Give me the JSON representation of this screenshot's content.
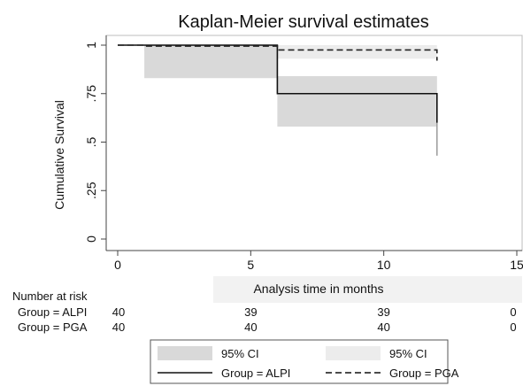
{
  "chart_data": {
    "type": "line",
    "subtype": "kaplan-meier step curve",
    "title": "Kaplan-Meier survival estimates",
    "xlabel": "Analysis time in months",
    "ylabel": "Cumulative Survival",
    "xlim": [
      0,
      15
    ],
    "ylim": [
      0,
      1
    ],
    "xticks": [
      0,
      5,
      10,
      15
    ],
    "xtick_labels": [
      "0",
      "5",
      "10",
      "15"
    ],
    "yticks": [
      0,
      0.25,
      0.5,
      0.75,
      1
    ],
    "ytick_labels": [
      "0",
      ".25",
      ".5",
      ".75",
      "1"
    ],
    "grid": false,
    "legend_position": "bottom",
    "series": [
      {
        "name": "Group = ALPI",
        "line_style": "solid",
        "color": "#111111",
        "steps": [
          {
            "x": 0,
            "y": 1.0
          },
          {
            "x": 1,
            "y": 1.0
          },
          {
            "x": 6,
            "y": 0.75
          },
          {
            "x": 12,
            "y": 0.6
          }
        ],
        "end_x": 12,
        "ci_color": "#d9d9d9",
        "ci_bands": [
          {
            "x_start": 1,
            "x_end": 6,
            "lower": 0.83,
            "upper": 1.0
          },
          {
            "x_start": 6,
            "x_end": 12,
            "lower": 0.58,
            "upper": 0.84
          }
        ]
      },
      {
        "name": "Group = PGA",
        "line_style": "dashed",
        "color": "#222222",
        "steps": [
          {
            "x": 0,
            "y": 1.0
          },
          {
            "x": 1,
            "y": 0.995
          },
          {
            "x": 6,
            "y": 0.975
          },
          {
            "x": 12,
            "y": 0.92
          }
        ],
        "end_x": 12,
        "ci_color": "#ececec",
        "ci_bands": [
          {
            "x_start": 1,
            "x_end": 6,
            "lower": 0.97,
            "upper": 1.0
          },
          {
            "x_start": 6,
            "x_end": 12,
            "lower": 0.93,
            "upper": 1.0
          }
        ]
      }
    ],
    "end_tail": {
      "x": 12,
      "lower": 0.43,
      "upper": 0.6
    }
  },
  "risk_table": {
    "header": "Number at risk",
    "rows": [
      {
        "label": "Group = ALPI",
        "counts": [
          "40",
          "39",
          "39",
          "0"
        ]
      },
      {
        "label": "Group = PGA",
        "counts": [
          "40",
          "40",
          "40",
          "0"
        ]
      }
    ],
    "count_x": [
      0,
      5,
      10,
      15
    ]
  },
  "legend": {
    "items": [
      {
        "label": "95% CI",
        "kind": "ci",
        "color": "#d9d9d9"
      },
      {
        "label": "95% CI",
        "kind": "ci",
        "color": "#ececec"
      },
      {
        "label": "Group = ALPI",
        "kind": "line",
        "style": "solid"
      },
      {
        "label": "Group = PGA",
        "kind": "line",
        "style": "dashed"
      }
    ]
  }
}
